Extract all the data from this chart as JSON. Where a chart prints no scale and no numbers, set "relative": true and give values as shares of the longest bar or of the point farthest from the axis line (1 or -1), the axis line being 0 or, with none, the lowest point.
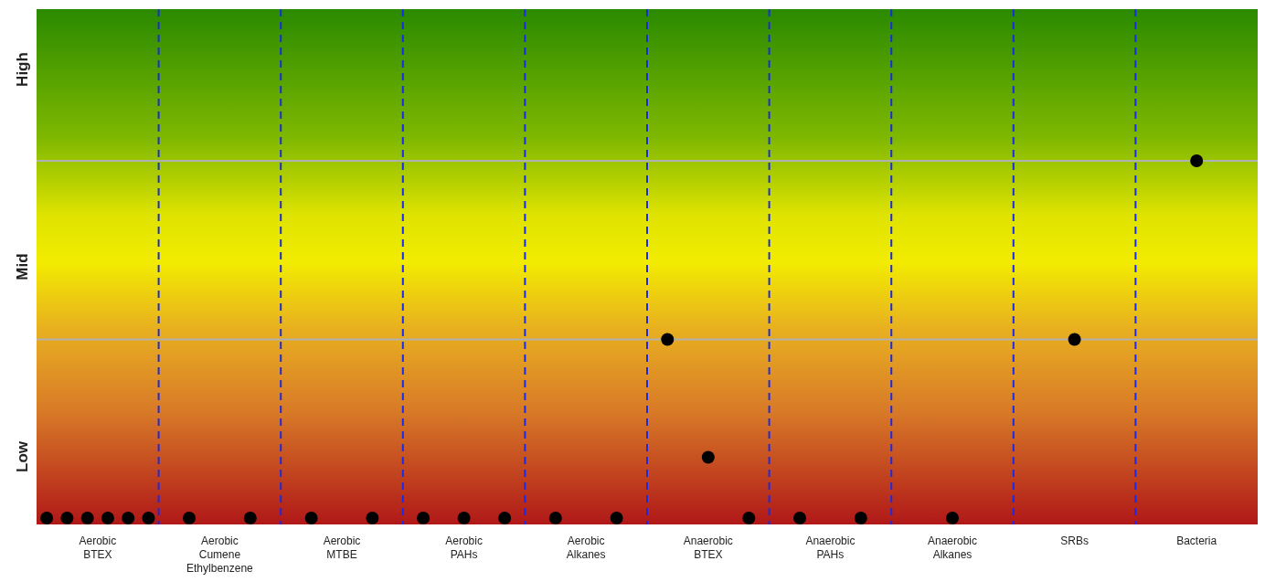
{
  "chart_data": {
    "type": "scatter",
    "categories": [
      "Aerobic\nBTEX",
      "Aerobic\nCumene\nEthylbenzene",
      "Aerobic\nMTBE",
      "Aerobic\nPAHs",
      "Aerobic\nAlkanes",
      "Anaerobic\nBTEX",
      "Anaerobic\nPAHs",
      "Anaerobic\nAlkanes",
      "SRBs",
      "Bacteria"
    ],
    "relative": true,
    "annotations": [
      "Low",
      "Mid",
      "High"
    ],
    "series": [
      {
        "color": "#000000",
        "x": [
          "Aerobic\nBTEX",
          "Aerobic\nBTEX",
          "Aerobic\nBTEX",
          "Aerobic\nBTEX",
          "Aerobic\nBTEX",
          "Aerobic\nBTEX",
          "Aerobic\nCumene\nEthylbenzene",
          "Aerobic\nCumene\nEthylbenzene",
          "Aerobic\nMTBE",
          "Aerobic\nMTBE",
          "Aerobic\nPAHs",
          "Aerobic\nPAHs",
          "Aerobic\nPAHs",
          "Aerobic\nAlkanes",
          "Aerobic\nAlkanes",
          "Anaerobic\nBTEX",
          "Anaerobic\nBTEX",
          "Anaerobic\nBTEX",
          "Anaerobic\nPAHs",
          "Anaerobic\nPAHs",
          "Anaerobic\nAlkanes",
          "SRBs",
          "Bacteria"
        ],
        "values": [
          0,
          0,
          0,
          0,
          0,
          0,
          0,
          0,
          0,
          0,
          0,
          0,
          0,
          0,
          0,
          0.5,
          0.17,
          0,
          0,
          0,
          0,
          0.5,
          1
        ]
      }
    ],
    "ref_lines": [
      {
        "axis": "y",
        "value": 0.5,
        "color": "#b0b0b0"
      },
      {
        "axis": "y",
        "value": 1,
        "color": "#b0b0b0"
      }
    ],
    "grid": "x",
    "legend": false,
    "marker": "circle"
  }
}
